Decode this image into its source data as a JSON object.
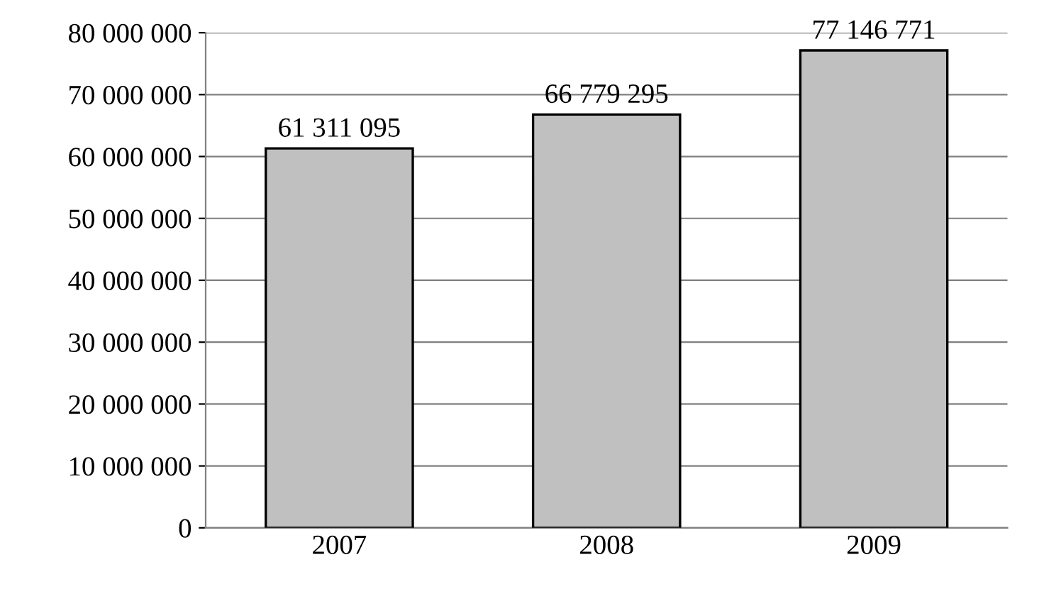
{
  "chart_data": {
    "type": "bar",
    "categories": [
      "2007",
      "2008",
      "2009"
    ],
    "values": [
      61311095,
      66779295,
      77146771
    ],
    "value_labels": [
      "61 311 095",
      "66 779 295",
      "77 146 771"
    ],
    "color": "#c0c0c0",
    "ylim": [
      0,
      80000000
    ],
    "yticks": [
      {
        "value": 0,
        "label": "0"
      },
      {
        "value": 10000000,
        "label": "10 000 000"
      },
      {
        "value": 20000000,
        "label": "20 000 000"
      },
      {
        "value": 30000000,
        "label": "30 000 000"
      },
      {
        "value": 40000000,
        "label": "40 000 000"
      },
      {
        "value": 50000000,
        "label": "50 000 000"
      },
      {
        "value": 60000000,
        "label": "60 000 000"
      },
      {
        "value": 70000000,
        "label": "70 000 000"
      },
      {
        "value": 80000000,
        "label": "80 000 000"
      }
    ],
    "grid": "y"
  }
}
